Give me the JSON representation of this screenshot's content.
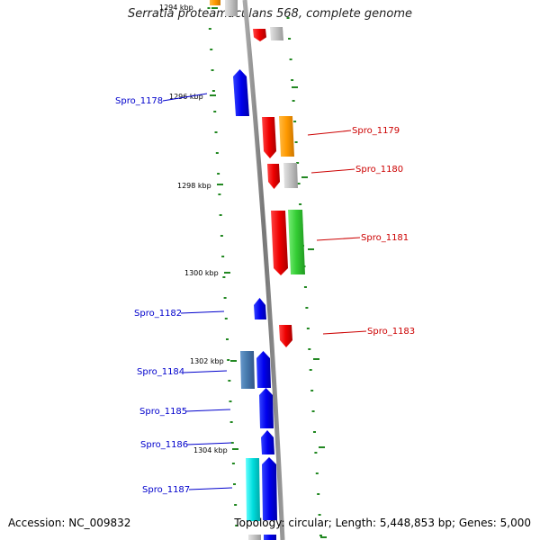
{
  "title": "Serratia proteamaculans 568, complete genome",
  "footer": {
    "accession": "Accession: NC_009832",
    "summary": "Topology: circular; Length: 5,448,853 bp; Genes: 5,000"
  },
  "ticks": [
    "1294 kbp",
    "1296 kbp",
    "1298 kbp",
    "1300 kbp",
    "1302 kbp",
    "1304 kbp"
  ],
  "genes": [
    {
      "label": "Spro_1178",
      "strand": "minus",
      "color": "#0000cc"
    },
    {
      "label": "Spro_1179",
      "strand": "plus",
      "color": "#cc0000"
    },
    {
      "label": "Spro_1180",
      "strand": "plus",
      "color": "#cc0000"
    },
    {
      "label": "Spro_1181",
      "strand": "plus",
      "color": "#cc0000"
    },
    {
      "label": "Spro_1182",
      "strand": "minus",
      "color": "#0000cc"
    },
    {
      "label": "Spro_1183",
      "strand": "plus",
      "color": "#cc0000"
    },
    {
      "label": "Spro_1184",
      "strand": "minus",
      "color": "#0000cc"
    },
    {
      "label": "Spro_1185",
      "strand": "minus",
      "color": "#0000cc"
    },
    {
      "label": "Spro_1186",
      "strand": "minus",
      "color": "#0000cc"
    },
    {
      "label": "Spro_1187",
      "strand": "minus",
      "color": "#0000cc"
    }
  ],
  "feature_colors": {
    "cds_plus": "#ff0000",
    "cds_minus": "#0000ff",
    "cog_orange": "#ff9900",
    "cog_gray": "#bbbbbb",
    "cog_green": "#33cc33",
    "cog_steelblue": "#4477aa",
    "cog_cyan": "#00dddd",
    "backbone": "#888888",
    "dots": "#228822"
  }
}
